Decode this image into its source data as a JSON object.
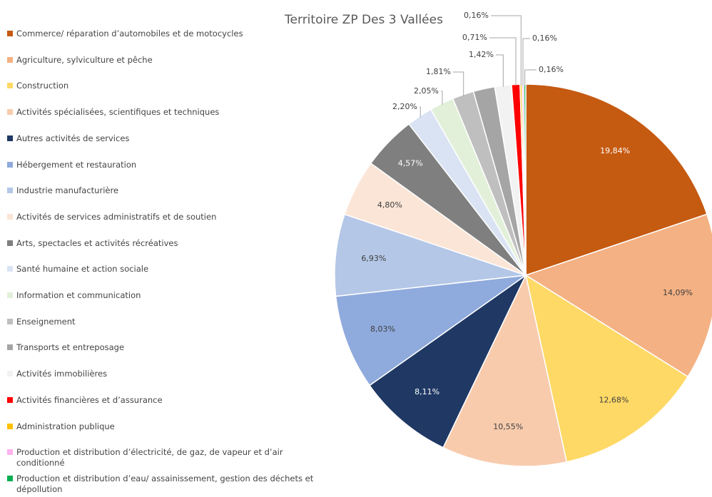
{
  "chart_data": {
    "type": "pie",
    "title": "Territoire ZP Des 3 Vallées",
    "categories": [
      "Commerce/ réparation d’automobiles et de motocycles",
      "Agriculture, sylviculture et pêche",
      "Construction",
      "Activités spécialisées, scientifiques et techniques",
      "Autres activités de services",
      "Hébergement et restauration",
      "Industrie manufacturière",
      "Activités de services administratifs et de soutien",
      "Arts, spectacles et activités récréatives",
      "Santé humaine et action sociale",
      "Information et communication",
      "Enseignement",
      "Transports et entreposage",
      "Activités immobilières",
      "Activités financières et d’assurance",
      "Administration publique",
      "Production et distribution d’électricité, de gaz, de vapeur et d’air conditionné",
      "Production et distribution d’eau/ assainissement, gestion des déchets et dépollution"
    ],
    "values": [
      19.84,
      14.09,
      12.68,
      10.55,
      8.11,
      8.03,
      6.93,
      4.8,
      4.57,
      2.2,
      2.05,
      1.81,
      1.81,
      1.42,
      0.71,
      0.16,
      0.16,
      0.16
    ],
    "value_labels": [
      "19,84%",
      "14,09%",
      "12,68%",
      "10,55%",
      "8,11%",
      "8,03%",
      "6,93%",
      "4,80%",
      "4,57%",
      "2,20%",
      "2,05%",
      "1,81%",
      null,
      "1,42%",
      "0,71%",
      "0,16%",
      "0,16%",
      "0,16%"
    ],
    "colors": [
      "#c55a11",
      "#f4b183",
      "#ffd966",
      "#f8cbad",
      "#1f3864",
      "#8faadc",
      "#b4c7e7",
      "#fbe5d6",
      "#7f7f7f",
      "#dae3f3",
      "#e2f0d9",
      "#bfbfbf",
      "#a5a5a5",
      "#f2f2f2",
      "#ff0000",
      "#ffc000",
      "#ffb3f0",
      "#00b050"
    ],
    "legend": "left"
  }
}
